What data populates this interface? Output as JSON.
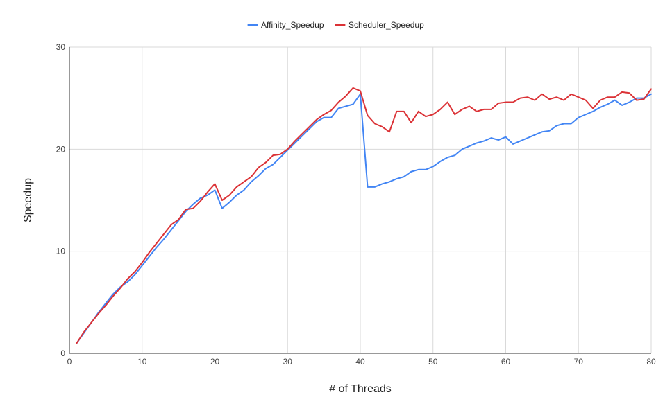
{
  "chart_data": {
    "type": "line",
    "title": "",
    "xlabel": "# of Threads",
    "ylabel": "Speedup",
    "xlim": [
      0,
      80
    ],
    "ylim": [
      0,
      30
    ],
    "x_ticks": [
      0,
      10,
      20,
      30,
      40,
      50,
      60,
      70,
      80
    ],
    "y_ticks": [
      0,
      10,
      20,
      30
    ],
    "grid": true,
    "legend_position": "top-center",
    "x": [
      1,
      2,
      3,
      4,
      5,
      6,
      7,
      8,
      9,
      10,
      11,
      12,
      13,
      14,
      15,
      16,
      17,
      18,
      19,
      20,
      21,
      22,
      23,
      24,
      25,
      26,
      27,
      28,
      29,
      30,
      31,
      32,
      33,
      34,
      35,
      36,
      37,
      38,
      39,
      40,
      41,
      42,
      43,
      44,
      45,
      46,
      47,
      48,
      49,
      50,
      51,
      52,
      53,
      54,
      55,
      56,
      57,
      58,
      59,
      60,
      61,
      62,
      63,
      64,
      65,
      66,
      67,
      68,
      69,
      70,
      71,
      72,
      73,
      74,
      75,
      76,
      77,
      78,
      79,
      80
    ],
    "series": [
      {
        "name": "Affinity_Speedup",
        "color": "#4285F4",
        "values": [
          1.0,
          2.0,
          3.0,
          4.0,
          4.9,
          5.8,
          6.5,
          7.0,
          7.7,
          8.6,
          9.5,
          10.4,
          11.2,
          12.1,
          13.0,
          13.9,
          14.6,
          15.2,
          15.5,
          16.0,
          14.2,
          14.8,
          15.5,
          16.0,
          16.8,
          17.4,
          18.1,
          18.5,
          19.2,
          19.9,
          20.6,
          21.3,
          22.0,
          22.7,
          23.1,
          23.1,
          24.0,
          24.2,
          24.4,
          25.4,
          16.3,
          16.3,
          16.6,
          16.8,
          17.1,
          17.3,
          17.8,
          18.0,
          18.0,
          18.3,
          18.8,
          19.2,
          19.4,
          20.0,
          20.3,
          20.6,
          20.8,
          21.1,
          20.9,
          21.2,
          20.5,
          20.8,
          21.1,
          21.4,
          21.7,
          21.8,
          22.3,
          22.5,
          22.5,
          23.1,
          23.4,
          23.7,
          24.1,
          24.4,
          24.8,
          24.3,
          24.6,
          25.0,
          25.0,
          25.4
        ]
      },
      {
        "name": "Scheduler_Speedup",
        "color": "#DB3236",
        "values": [
          1.0,
          2.1,
          3.0,
          3.9,
          4.7,
          5.6,
          6.4,
          7.3,
          8.0,
          8.9,
          9.9,
          10.8,
          11.7,
          12.6,
          13.1,
          14.1,
          14.2,
          14.9,
          15.8,
          16.6,
          15.0,
          15.5,
          16.3,
          16.8,
          17.3,
          18.2,
          18.7,
          19.4,
          19.5,
          20.0,
          20.8,
          21.5,
          22.2,
          22.9,
          23.4,
          23.8,
          24.6,
          25.2,
          26.0,
          25.7,
          23.3,
          22.5,
          22.2,
          21.7,
          23.7,
          23.7,
          22.6,
          23.7,
          23.2,
          23.4,
          23.9,
          24.6,
          23.4,
          23.9,
          24.2,
          23.7,
          23.9,
          23.9,
          24.5,
          24.6,
          24.6,
          25.0,
          25.1,
          24.8,
          25.4,
          24.9,
          25.1,
          24.8,
          25.4,
          25.1,
          24.8,
          24.0,
          24.8,
          25.1,
          25.1,
          25.6,
          25.5,
          24.8,
          24.9,
          25.9
        ]
      }
    ]
  }
}
